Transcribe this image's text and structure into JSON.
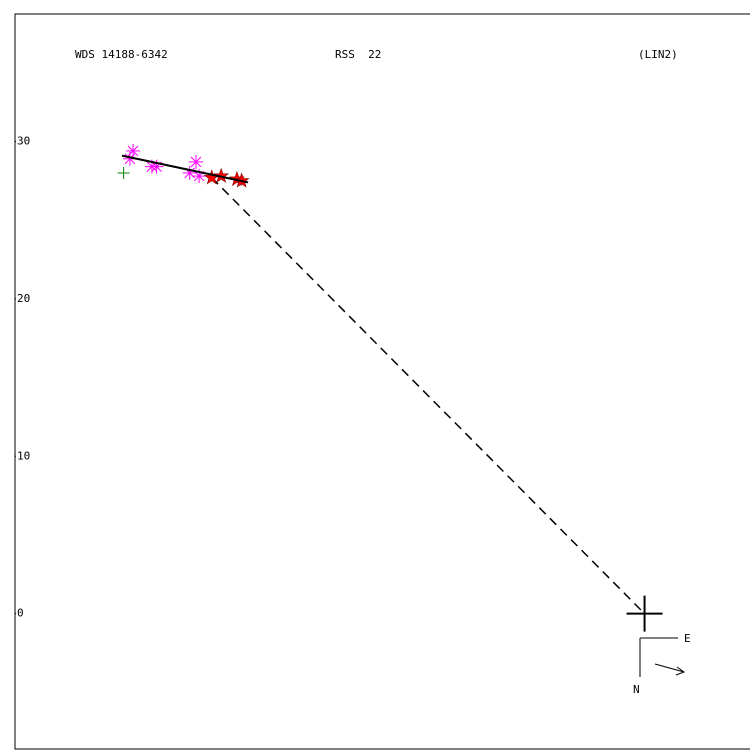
{
  "chart_data": {
    "type": "scatter",
    "title": "WDS 14188-6342",
    "subtitle": "RSS  22",
    "annotation": "(LIN2)",
    "compass": {
      "east": "E",
      "north": "N"
    },
    "xlim": [
      -40,
      6.7
    ],
    "ylim": [
      -8.6,
      38.1
    ],
    "yticks": [
      0,
      10,
      20,
      30
    ],
    "series": [
      {
        "marker": "asterisk",
        "color": "#ff00ff",
        "x": [
          -32.5,
          -32.7,
          -31.3,
          -31.0,
          -28.5,
          -28.9,
          -28.3
        ],
        "y": [
          29.4,
          28.9,
          28.4,
          28.4,
          28.7,
          28.0,
          27.8
        ]
      },
      {
        "marker": "plus",
        "color": "#008000",
        "x": [
          -33.1
        ],
        "y": [
          28.0
        ]
      },
      {
        "marker": "star",
        "color": "#ff0000",
        "x": [
          -27.5,
          -26.9,
          -25.9,
          -25.6
        ],
        "y": [
          27.7,
          27.8,
          27.6,
          27.5
        ]
      }
    ],
    "fit_line": {
      "color": "#000000",
      "x": [
        -33.2,
        -25.2
      ],
      "y": [
        29.1,
        27.4
      ]
    },
    "dashed_line": {
      "color": "#000000",
      "x": [
        -27.5,
        0
      ],
      "y": [
        27.7,
        0
      ]
    },
    "primary": {
      "x": 0,
      "y": 0
    }
  }
}
